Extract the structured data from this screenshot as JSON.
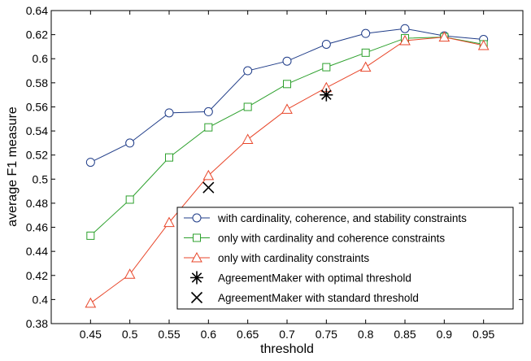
{
  "chart_data": {
    "type": "line",
    "title": "",
    "xlabel": "threshold",
    "ylabel": "average F1 measure",
    "xlim": [
      0.4,
      1.0
    ],
    "ylim": [
      0.38,
      0.64
    ],
    "xticks": [
      "0.45",
      "0.5",
      "0.55",
      "0.6",
      "0.65",
      "0.7",
      "0.75",
      "0.8",
      "0.85",
      "0.9",
      "0.95"
    ],
    "yticks": [
      "0.38",
      "0.4",
      "0.42",
      "0.44",
      "0.46",
      "0.48",
      "0.5",
      "0.52",
      "0.54",
      "0.56",
      "0.58",
      "0.6",
      "0.62",
      "0.64"
    ],
    "grid": false,
    "legend_position": "lower-right",
    "x": [
      0.45,
      0.5,
      0.55,
      0.6,
      0.65,
      0.7,
      0.75,
      0.8,
      0.85,
      0.9,
      0.95
    ],
    "series": [
      {
        "name": "with cardinality, coherence, and stability constraints",
        "color": "#1f3c88",
        "marker": "circle",
        "values": [
          0.514,
          0.53,
          0.555,
          0.556,
          0.59,
          0.598,
          0.612,
          0.621,
          0.625,
          0.619,
          0.616
        ]
      },
      {
        "name": "only with cardinality and coherence constraints",
        "color": "#2ca02c",
        "marker": "square",
        "values": [
          0.453,
          0.483,
          0.518,
          0.543,
          0.56,
          0.579,
          0.593,
          0.605,
          0.617,
          0.618,
          0.612
        ]
      },
      {
        "name": "only with cardinality constraints",
        "color": "#e8462a",
        "marker": "triangle",
        "values": [
          0.397,
          0.421,
          0.464,
          0.503,
          0.533,
          0.558,
          0.576,
          0.593,
          0.615,
          0.618,
          0.611
        ]
      }
    ],
    "points": [
      {
        "name": "AgreementMaker with optimal threshold",
        "marker": "asterisk",
        "color": "#000000",
        "x": 0.75,
        "y": 0.57
      },
      {
        "name": "AgreementMaker with standard threshold",
        "marker": "cross",
        "color": "#000000",
        "x": 0.6,
        "y": 0.493
      }
    ]
  }
}
